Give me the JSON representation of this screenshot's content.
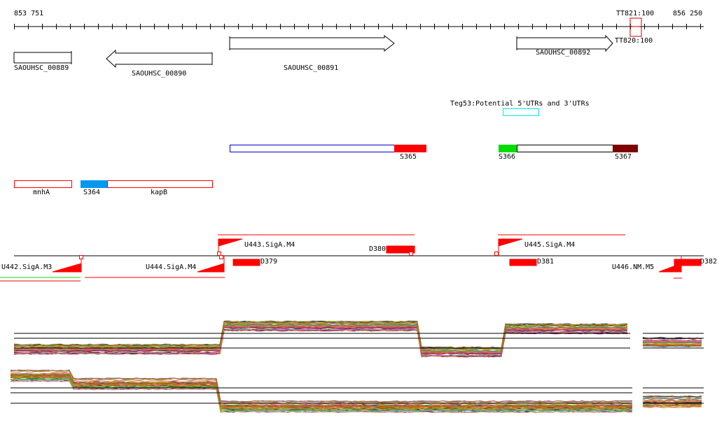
{
  "ruler": {
    "start": "853 751",
    "end": "856 250",
    "marker_top": "TT821:100",
    "marker_bottom": "TT820:100"
  },
  "genes": [
    {
      "name": "SAOUHSC_00889",
      "strand": "+"
    },
    {
      "name": "SAOUHSC_00890",
      "strand": "-"
    },
    {
      "name": "SAOUHSC_00891",
      "strand": "+"
    },
    {
      "name": "SAOUHSC_00892",
      "strand": "+"
    }
  ],
  "utr_track": {
    "label": "Teg53:Potential 5'UTRs and 3'UTRs",
    "color": "#00e5ee"
  },
  "segments": [
    {
      "label": "S365",
      "color": "#ff0000"
    },
    {
      "label": "S366",
      "color": "#00dd00"
    },
    {
      "label": "S367",
      "color": "#7f0000"
    },
    {
      "label": "S364",
      "color": "#0099ee"
    }
  ],
  "operon_genes": [
    "mnhA",
    "kapB"
  ],
  "promoters": [
    "U442.SigA.M3",
    "U443.SigA.M4",
    "U444.SigA.M4",
    "U445.SigA.M4",
    "U446.NM.M5"
  ],
  "terminators": [
    "D379",
    "D380",
    "D381",
    "D382"
  ],
  "colors": {
    "feature": "#ff0000",
    "axis": "#000000"
  }
}
